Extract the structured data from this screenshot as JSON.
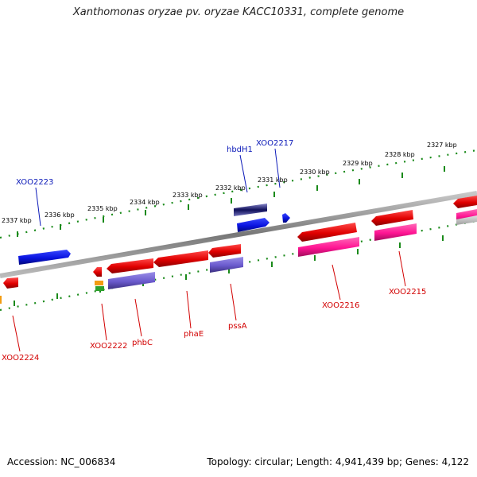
{
  "map": {
    "title": "Xanthomonas oryzae pv. oryzae KACC10331, complete genome",
    "accession": "Accession: NC_006834",
    "summary": "Topology: circular; Length: 4,941,439 bp; Genes: 4,122"
  },
  "colors": {
    "forward_gene": "#0a14e0",
    "reverse_gene": "#e00000",
    "forward_cog": "#6a5acd",
    "reverse_cog": "#ff1493",
    "backbone": "#888888",
    "tick": "#1a8a1a"
  },
  "kbp_labels": [
    {
      "text": "2337 kbp",
      "pos": 2337
    },
    {
      "text": "2336 kbp",
      "pos": 2336
    },
    {
      "text": "2335 kbp",
      "pos": 2335
    },
    {
      "text": "2334 kbp",
      "pos": 2334
    },
    {
      "text": "2333 kbp",
      "pos": 2333
    },
    {
      "text": "2332 kbp",
      "pos": 2332
    },
    {
      "text": "2331 kbp",
      "pos": 2331
    },
    {
      "text": "2330 kbp",
      "pos": 2330
    },
    {
      "text": "2329 kbp",
      "pos": 2329
    },
    {
      "text": "2328 kbp",
      "pos": 2328
    },
    {
      "text": "2327 kbp",
      "pos": 2327
    }
  ],
  "forward_gene_labels": [
    "XOO2223",
    "hbdH1",
    "XOO2217"
  ],
  "reverse_gene_labels": [
    "XOO2224",
    "XOO2222",
    "phbC",
    "phaE",
    "pssA",
    "XOO2216",
    "XOO2215"
  ]
}
